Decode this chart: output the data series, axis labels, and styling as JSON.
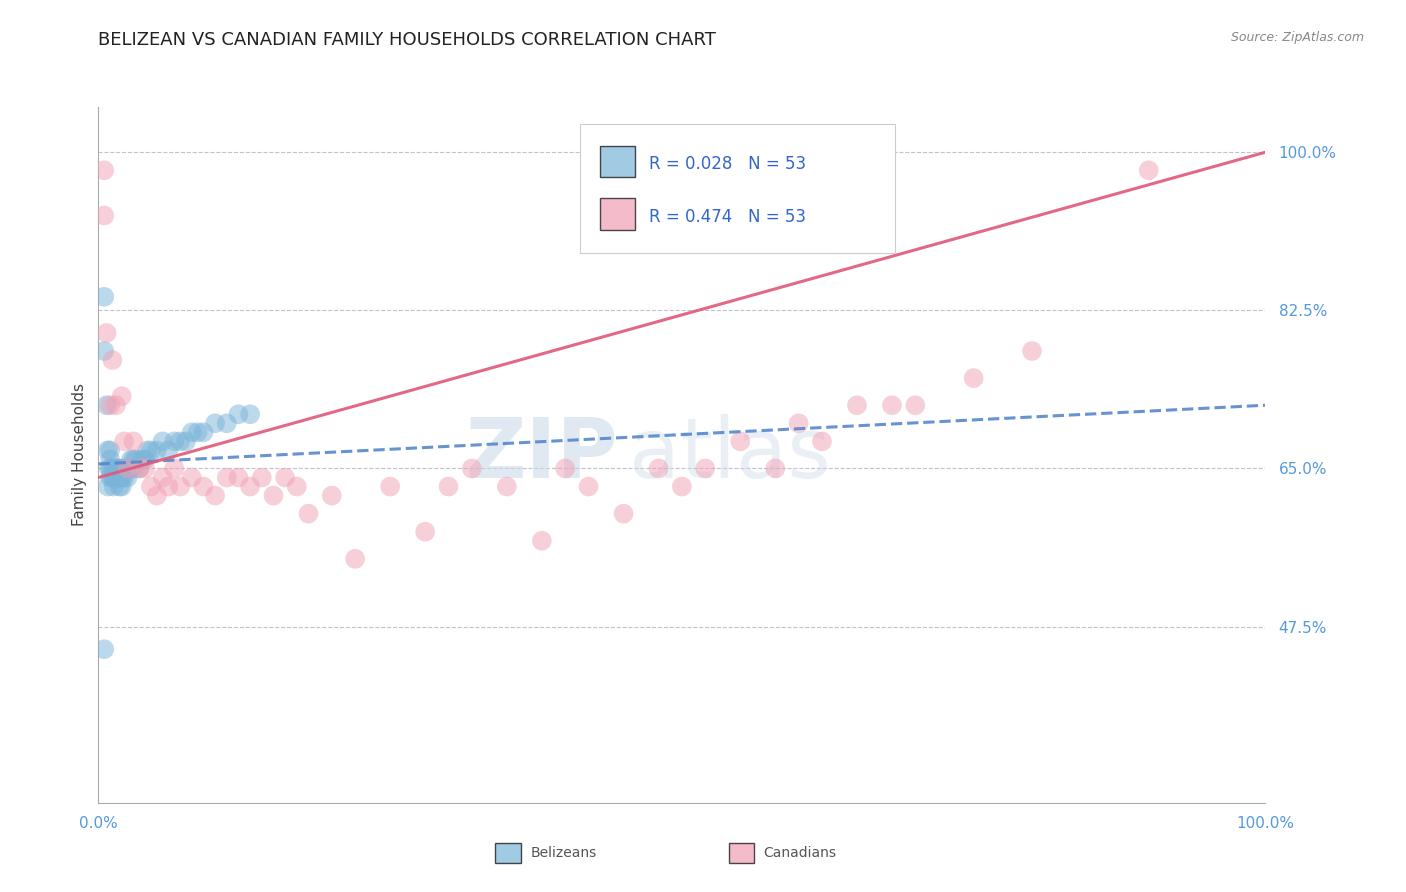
{
  "title": "BELIZEAN VS CANADIAN FAMILY HOUSEHOLDS CORRELATION CHART",
  "source_text": "Source: ZipAtlas.com",
  "ylabel": "Family Households",
  "y_ticks": [
    0.475,
    0.65,
    0.825,
    1.0
  ],
  "y_tick_labels": [
    "47.5%",
    "65.0%",
    "82.5%",
    "100.0%"
  ],
  "x_ticks": [
    0.0,
    1.0
  ],
  "x_tick_labels": [
    "0.0%",
    "100.0%"
  ],
  "x_range": [
    0.0,
    1.0
  ],
  "y_range": [
    0.28,
    1.05
  ],
  "R_belizean": 0.028,
  "N_belizean": 53,
  "R_canadian": 0.474,
  "N_canadian": 53,
  "belizean_x": [
    0.005,
    0.005,
    0.007,
    0.008,
    0.008,
    0.009,
    0.01,
    0.01,
    0.01,
    0.01,
    0.012,
    0.012,
    0.013,
    0.013,
    0.014,
    0.015,
    0.015,
    0.016,
    0.017,
    0.017,
    0.018,
    0.019,
    0.02,
    0.02,
    0.02,
    0.022,
    0.023,
    0.025,
    0.025,
    0.027,
    0.028,
    0.03,
    0.03,
    0.032,
    0.035,
    0.037,
    0.04,
    0.042,
    0.045,
    0.05,
    0.055,
    0.06,
    0.065,
    0.07,
    0.075,
    0.08,
    0.085,
    0.09,
    0.1,
    0.11,
    0.12,
    0.13,
    0.005
  ],
  "belizean_y": [
    0.84,
    0.78,
    0.72,
    0.67,
    0.63,
    0.65,
    0.64,
    0.65,
    0.66,
    0.67,
    0.64,
    0.65,
    0.63,
    0.64,
    0.65,
    0.64,
    0.65,
    0.65,
    0.64,
    0.65,
    0.63,
    0.64,
    0.63,
    0.64,
    0.65,
    0.64,
    0.65,
    0.64,
    0.65,
    0.65,
    0.66,
    0.65,
    0.66,
    0.66,
    0.65,
    0.66,
    0.66,
    0.67,
    0.67,
    0.67,
    0.68,
    0.67,
    0.68,
    0.68,
    0.68,
    0.69,
    0.69,
    0.69,
    0.7,
    0.7,
    0.71,
    0.71,
    0.45
  ],
  "canadian_x": [
    0.005,
    0.005,
    0.007,
    0.01,
    0.012,
    0.015,
    0.02,
    0.022,
    0.025,
    0.03,
    0.035,
    0.04,
    0.045,
    0.05,
    0.055,
    0.06,
    0.065,
    0.07,
    0.08,
    0.09,
    0.1,
    0.11,
    0.12,
    0.13,
    0.14,
    0.15,
    0.16,
    0.17,
    0.18,
    0.2,
    0.22,
    0.25,
    0.28,
    0.3,
    0.32,
    0.35,
    0.38,
    0.4,
    0.42,
    0.45,
    0.48,
    0.5,
    0.52,
    0.55,
    0.58,
    0.6,
    0.62,
    0.65,
    0.68,
    0.7,
    0.75,
    0.8,
    0.9
  ],
  "canadian_y": [
    0.98,
    0.93,
    0.8,
    0.72,
    0.77,
    0.72,
    0.73,
    0.68,
    0.65,
    0.68,
    0.65,
    0.65,
    0.63,
    0.62,
    0.64,
    0.63,
    0.65,
    0.63,
    0.64,
    0.63,
    0.62,
    0.64,
    0.64,
    0.63,
    0.64,
    0.62,
    0.64,
    0.63,
    0.6,
    0.62,
    0.55,
    0.63,
    0.58,
    0.63,
    0.65,
    0.63,
    0.57,
    0.65,
    0.63,
    0.6,
    0.65,
    0.63,
    0.65,
    0.68,
    0.65,
    0.7,
    0.68,
    0.72,
    0.72,
    0.72,
    0.75,
    0.78,
    0.98
  ],
  "belizean_color": "#7ab4d8",
  "canadian_color": "#f0a0b5",
  "belizean_line_color": "#5588cc",
  "canadian_line_color": "#e05878",
  "grid_color": "#bbbbcc",
  "background_color": "#ffffff",
  "watermark_zip": "ZIP",
  "watermark_atlas": "atlas",
  "title_fontsize": 13,
  "axis_label_fontsize": 11,
  "tick_fontsize": 11,
  "legend_fontsize": 12,
  "tick_color": "#5599dd",
  "source_color": "#888888"
}
